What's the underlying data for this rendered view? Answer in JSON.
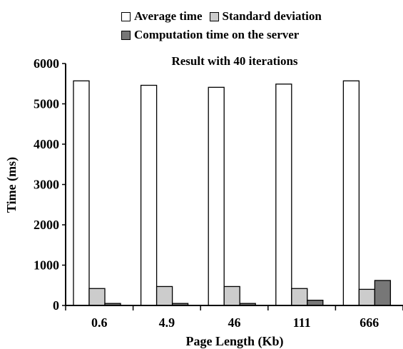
{
  "chart_data": {
    "type": "bar",
    "title": "Result with 40 iterations",
    "xlabel": "Page Length (Kb)",
    "ylabel": "Time (ms)",
    "categories": [
      "0.6",
      "4.9",
      "46",
      "111",
      "666"
    ],
    "ylim": [
      0,
      6000
    ],
    "yticks": [
      "0",
      "1000",
      "2000",
      "3000",
      "4000",
      "5000",
      "6000"
    ],
    "series": [
      {
        "name": "Average time",
        "color": "#ffffff",
        "values": [
          5570,
          5460,
          5410,
          5490,
          5570
        ]
      },
      {
        "name": "Standard deviation",
        "color": "#cccccc",
        "values": [
          420,
          470,
          470,
          420,
          400
        ]
      },
      {
        "name": "Computation time on the server",
        "color": "#777777",
        "values": [
          50,
          50,
          50,
          130,
          620
        ]
      }
    ],
    "legend_position": "top",
    "grid": false
  }
}
